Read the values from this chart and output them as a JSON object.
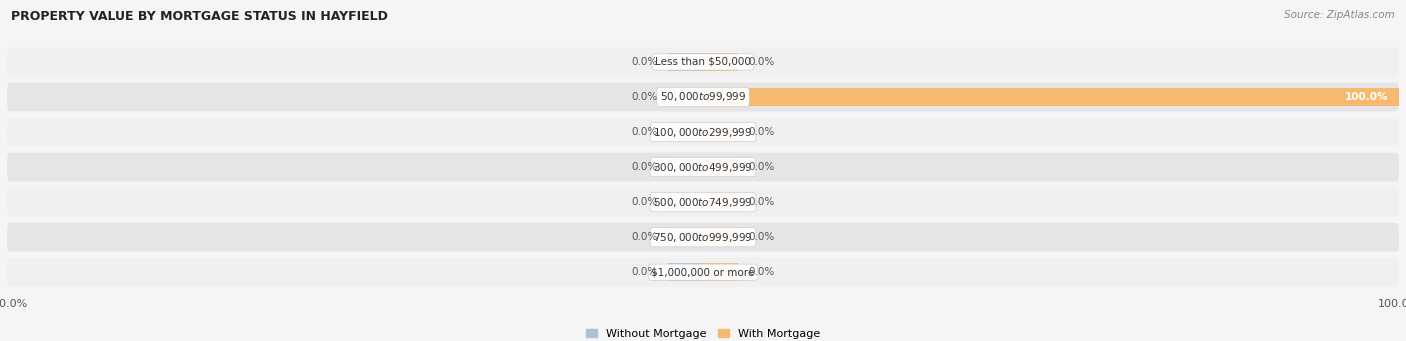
{
  "title": "PROPERTY VALUE BY MORTGAGE STATUS IN HAYFIELD",
  "source": "Source: ZipAtlas.com",
  "categories": [
    "Less than $50,000",
    "$50,000 to $99,999",
    "$100,000 to $299,999",
    "$300,000 to $499,999",
    "$500,000 to $749,999",
    "$750,000 to $999,999",
    "$1,000,000 or more"
  ],
  "without_mortgage": [
    0.0,
    0.0,
    0.0,
    0.0,
    0.0,
    0.0,
    0.0
  ],
  "with_mortgage": [
    0.0,
    100.0,
    0.0,
    0.0,
    0.0,
    0.0,
    0.0
  ],
  "without_mortgage_color": "#a8c4dc",
  "with_mortgage_color": "#f5b971",
  "row_bg_light": "#f0f0f0",
  "row_bg_dark": "#e5e5e5",
  "fig_bg": "#f5f5f5",
  "title_color": "#222222",
  "source_color": "#888888",
  "value_color": "#555555",
  "value_color_white": "#ffffff",
  "label_bg": "#ffffff",
  "label_border": "#cccccc",
  "legend_label_without": "Without Mortgage",
  "legend_label_with": "With Mortgage",
  "axis_min": -100,
  "axis_max": 100,
  "min_bar_display": 5,
  "figwidth": 14.06,
  "figheight": 3.41,
  "dpi": 100
}
